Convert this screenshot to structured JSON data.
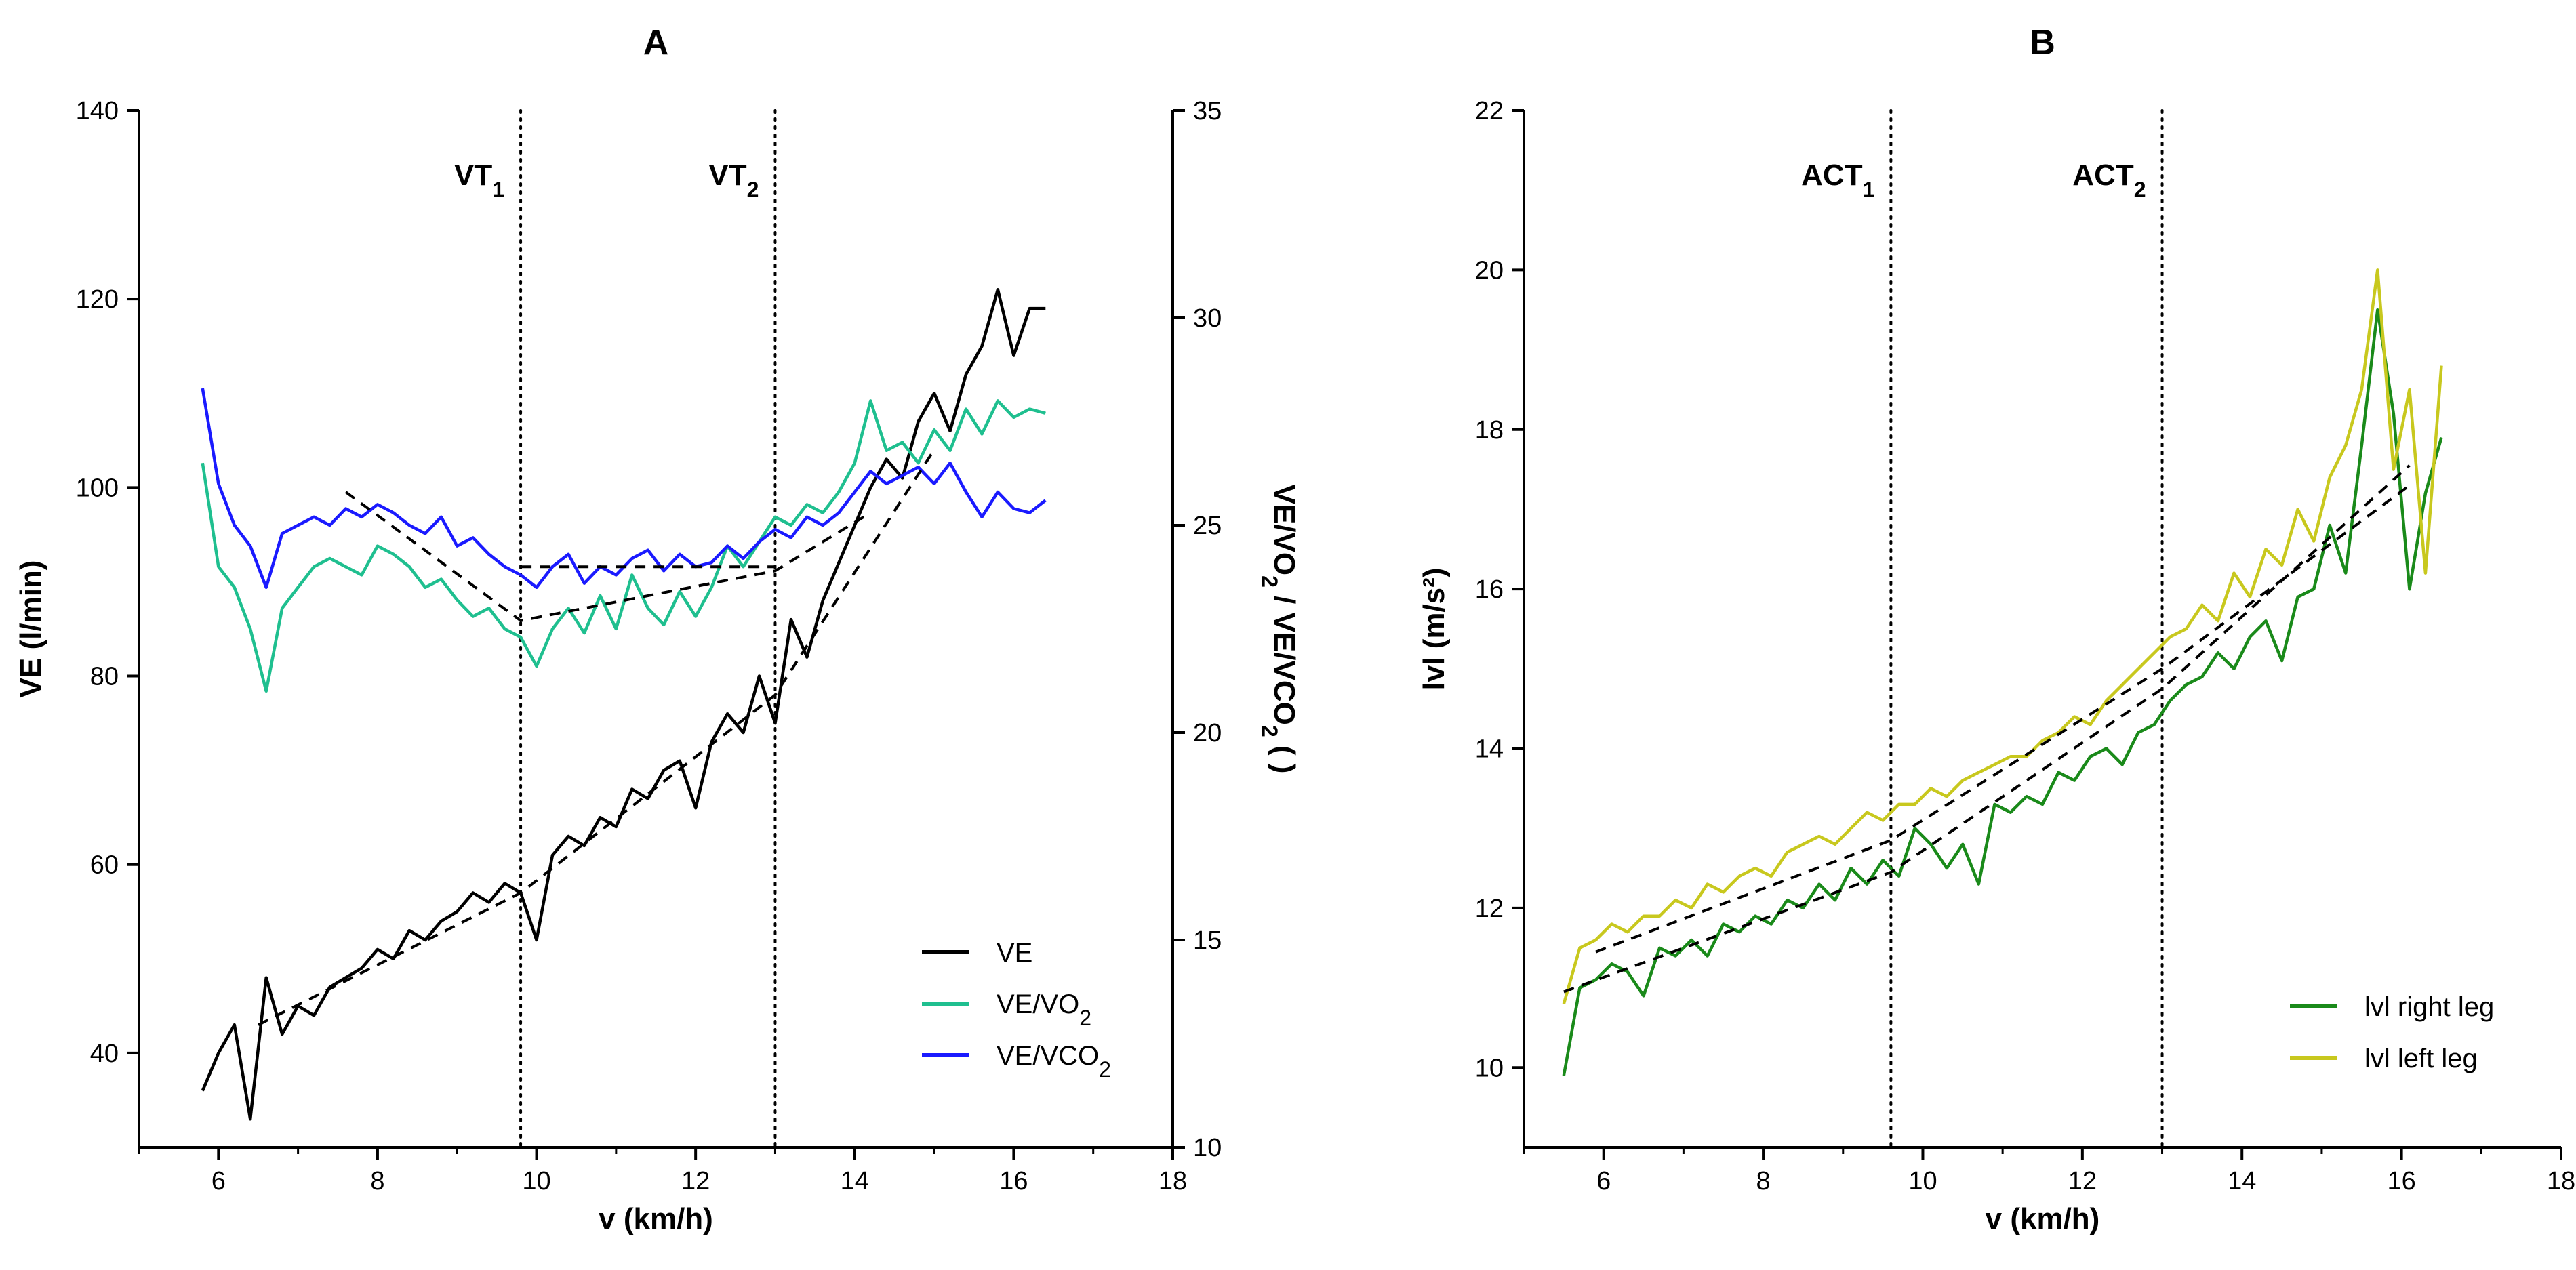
{
  "chart_data": [
    {
      "panel": "A",
      "type": "line",
      "xlabel": "v (km/h)",
      "ylabel": "VE (l/min)",
      "ylabel_right": [
        "VE/VO",
        "2",
        " / VE/VCO",
        "2",
        " ( )"
      ],
      "xlim": [
        5,
        18
      ],
      "xticks": [
        6,
        8,
        10,
        12,
        14,
        16,
        18
      ],
      "ylim": [
        30,
        140
      ],
      "yticks": [
        40,
        60,
        80,
        100,
        120,
        140
      ],
      "y2lim": [
        10,
        35
      ],
      "y2ticks": [
        10,
        15,
        20,
        25,
        30,
        35
      ],
      "grid": false,
      "legend_position": "bottom-right",
      "thresholds": [
        {
          "x": 9.8,
          "label": "VT",
          "sub": "1"
        },
        {
          "x": 13.0,
          "label": "VT",
          "sub": "2"
        }
      ],
      "series": [
        {
          "name": "VE",
          "axis": "left",
          "color": "#000000",
          "x": [
            5.8,
            6.0,
            6.2,
            6.4,
            6.6,
            6.8,
            7.0,
            7.2,
            7.4,
            7.6,
            7.8,
            8.0,
            8.2,
            8.4,
            8.6,
            8.8,
            9.0,
            9.2,
            9.4,
            9.6,
            9.8,
            10.0,
            10.2,
            10.4,
            10.6,
            10.8,
            11.0,
            11.2,
            11.4,
            11.6,
            11.8,
            12.0,
            12.2,
            12.4,
            12.6,
            12.8,
            13.0,
            13.2,
            13.4,
            13.6,
            13.8,
            14.0,
            14.2,
            14.4,
            14.6,
            14.8,
            15.0,
            15.2,
            15.4,
            15.6,
            15.8,
            16.0,
            16.2,
            16.4
          ],
          "y": [
            36,
            40,
            43,
            33,
            48,
            42,
            45,
            44,
            47,
            48,
            49,
            51,
            50,
            53,
            52,
            54,
            55,
            57,
            56,
            58,
            57,
            52,
            61,
            63,
            62,
            65,
            64,
            68,
            67,
            70,
            71,
            66,
            73,
            76,
            74,
            80,
            75,
            86,
            82,
            88,
            92,
            96,
            100,
            103,
            101,
            107,
            110,
            106,
            112,
            115,
            121,
            114,
            119,
            119
          ]
        },
        {
          "name": "VE/VO",
          "name_sub": "2",
          "axis": "right",
          "color": "#1fbf8f",
          "x": [
            5.8,
            6.0,
            6.2,
            6.4,
            6.6,
            6.8,
            7.0,
            7.2,
            7.4,
            7.6,
            7.8,
            8.0,
            8.2,
            8.4,
            8.6,
            8.8,
            9.0,
            9.2,
            9.4,
            9.6,
            9.8,
            10.0,
            10.2,
            10.4,
            10.6,
            10.8,
            11.0,
            11.2,
            11.4,
            11.6,
            11.8,
            12.0,
            12.2,
            12.4,
            12.6,
            12.8,
            13.0,
            13.2,
            13.4,
            13.6,
            13.8,
            14.0,
            14.2,
            14.4,
            14.6,
            14.8,
            15.0,
            15.2,
            15.4,
            15.6,
            15.8,
            16.0,
            16.2,
            16.4
          ],
          "y": [
            26.5,
            24.0,
            23.5,
            22.5,
            21.0,
            23.0,
            23.5,
            24.0,
            24.2,
            24.0,
            23.8,
            24.5,
            24.3,
            24.0,
            23.5,
            23.7,
            23.2,
            22.8,
            23.0,
            22.5,
            22.3,
            21.6,
            22.5,
            23.0,
            22.4,
            23.3,
            22.5,
            23.8,
            23.0,
            22.6,
            23.4,
            22.8,
            23.5,
            24.5,
            24.0,
            24.6,
            25.2,
            25.0,
            25.5,
            25.3,
            25.8,
            26.5,
            28.0,
            26.8,
            27.0,
            26.5,
            27.3,
            26.8,
            27.8,
            27.2,
            28.0,
            27.6,
            27.8,
            27.7
          ]
        },
        {
          "name": "VE/VCO",
          "name_sub": "2",
          "axis": "right",
          "color": "#1a1aff",
          "x": [
            5.8,
            6.0,
            6.2,
            6.4,
            6.6,
            6.8,
            7.0,
            7.2,
            7.4,
            7.6,
            7.8,
            8.0,
            8.2,
            8.4,
            8.6,
            8.8,
            9.0,
            9.2,
            9.4,
            9.6,
            9.8,
            10.0,
            10.2,
            10.4,
            10.6,
            10.8,
            11.0,
            11.2,
            11.4,
            11.6,
            11.8,
            12.0,
            12.2,
            12.4,
            12.6,
            12.8,
            13.0,
            13.2,
            13.4,
            13.6,
            13.8,
            14.0,
            14.2,
            14.4,
            14.6,
            14.8,
            15.0,
            15.2,
            15.4,
            15.6,
            15.8,
            16.0,
            16.2,
            16.4
          ],
          "y": [
            28.3,
            26.0,
            25.0,
            24.5,
            23.5,
            24.8,
            25.0,
            25.2,
            25.0,
            25.4,
            25.2,
            25.5,
            25.3,
            25.0,
            24.8,
            25.2,
            24.5,
            24.7,
            24.3,
            24.0,
            23.8,
            23.5,
            24.0,
            24.3,
            23.6,
            24.0,
            23.8,
            24.2,
            24.4,
            23.9,
            24.3,
            24.0,
            24.1,
            24.5,
            24.2,
            24.6,
            24.9,
            24.7,
            25.2,
            25.0,
            25.3,
            25.8,
            26.3,
            26.0,
            26.2,
            26.4,
            26.0,
            26.5,
            25.8,
            25.2,
            25.8,
            25.4,
            25.3,
            25.6
          ]
        }
      ],
      "fit_lines_left": [
        [
          [
            6.5,
            43
          ],
          [
            9.8,
            57
          ],
          [
            13.0,
            78
          ],
          [
            15.0,
            104
          ]
        ]
      ],
      "fit_lines_right": [
        [
          [
            7.6,
            25.8
          ],
          [
            9.8,
            22.7
          ],
          [
            13.0,
            23.9
          ],
          [
            14.2,
            25.3
          ]
        ],
        [
          [
            9.8,
            24.0
          ],
          [
            13.0,
            24.0
          ]
        ]
      ]
    },
    {
      "panel": "B",
      "type": "line",
      "xlabel": "v (km/h)",
      "ylabel": "lvl (m/s²)",
      "xlim": [
        5,
        18
      ],
      "xticks": [
        6,
        8,
        10,
        12,
        14,
        16,
        18
      ],
      "ylim": [
        9,
        22
      ],
      "yticks": [
        10,
        12,
        14,
        16,
        18,
        20,
        22
      ],
      "grid": false,
      "legend_position": "bottom-right",
      "thresholds": [
        {
          "x": 9.6,
          "label": "ACT",
          "sub": "1"
        },
        {
          "x": 13.0,
          "label": "ACT",
          "sub": "2"
        }
      ],
      "series": [
        {
          "name": "lvl right leg",
          "color": "#1a8a1a",
          "x": [
            5.5,
            5.7,
            5.9,
            6.1,
            6.3,
            6.5,
            6.7,
            6.9,
            7.1,
            7.3,
            7.5,
            7.7,
            7.9,
            8.1,
            8.3,
            8.5,
            8.7,
            8.9,
            9.1,
            9.3,
            9.5,
            9.7,
            9.9,
            10.1,
            10.3,
            10.5,
            10.7,
            10.9,
            11.1,
            11.3,
            11.5,
            11.7,
            11.9,
            12.1,
            12.3,
            12.5,
            12.7,
            12.9,
            13.1,
            13.3,
            13.5,
            13.7,
            13.9,
            14.1,
            14.3,
            14.5,
            14.7,
            14.9,
            15.1,
            15.3,
            15.5,
            15.7,
            15.9,
            16.1,
            16.3,
            16.5
          ],
          "y": [
            9.9,
            11.0,
            11.1,
            11.3,
            11.2,
            10.9,
            11.5,
            11.4,
            11.6,
            11.4,
            11.8,
            11.7,
            11.9,
            11.8,
            12.1,
            12.0,
            12.3,
            12.1,
            12.5,
            12.3,
            12.6,
            12.4,
            13.0,
            12.8,
            12.5,
            12.8,
            12.3,
            13.3,
            13.2,
            13.4,
            13.3,
            13.7,
            13.6,
            13.9,
            14.0,
            13.8,
            14.2,
            14.3,
            14.6,
            14.8,
            14.9,
            15.2,
            15.0,
            15.4,
            15.6,
            15.1,
            15.9,
            16.0,
            16.8,
            16.2,
            17.8,
            19.5,
            18.2,
            16.0,
            17.2,
            17.9
          ]
        },
        {
          "name": "lvl left leg",
          "color": "#c8c81e",
          "x": [
            5.5,
            5.7,
            5.9,
            6.1,
            6.3,
            6.5,
            6.7,
            6.9,
            7.1,
            7.3,
            7.5,
            7.7,
            7.9,
            8.1,
            8.3,
            8.5,
            8.7,
            8.9,
            9.1,
            9.3,
            9.5,
            9.7,
            9.9,
            10.1,
            10.3,
            10.5,
            10.7,
            10.9,
            11.1,
            11.3,
            11.5,
            11.7,
            11.9,
            12.1,
            12.3,
            12.5,
            12.7,
            12.9,
            13.1,
            13.3,
            13.5,
            13.7,
            13.9,
            14.1,
            14.3,
            14.5,
            14.7,
            14.9,
            15.1,
            15.3,
            15.5,
            15.7,
            15.9,
            16.1,
            16.3,
            16.5
          ],
          "y": [
            10.8,
            11.5,
            11.6,
            11.8,
            11.7,
            11.9,
            11.9,
            12.1,
            12.0,
            12.3,
            12.2,
            12.4,
            12.5,
            12.4,
            12.7,
            12.8,
            12.9,
            12.8,
            13.0,
            13.2,
            13.1,
            13.3,
            13.3,
            13.5,
            13.4,
            13.6,
            13.7,
            13.8,
            13.9,
            13.9,
            14.1,
            14.2,
            14.4,
            14.3,
            14.6,
            14.8,
            15.0,
            15.2,
            15.4,
            15.5,
            15.8,
            15.6,
            16.2,
            15.9,
            16.5,
            16.3,
            17.0,
            16.6,
            17.4,
            17.8,
            18.5,
            20.0,
            17.5,
            18.5,
            16.2,
            18.8
          ]
        }
      ],
      "fit_lines": [
        [
          [
            5.5,
            10.95
          ],
          [
            9.6,
            12.45
          ],
          [
            13.0,
            14.75
          ],
          [
            16.1,
            17.55
          ]
        ],
        [
          [
            5.9,
            11.45
          ],
          [
            9.6,
            12.85
          ],
          [
            13.0,
            15.0
          ],
          [
            16.1,
            17.3
          ]
        ]
      ]
    }
  ]
}
